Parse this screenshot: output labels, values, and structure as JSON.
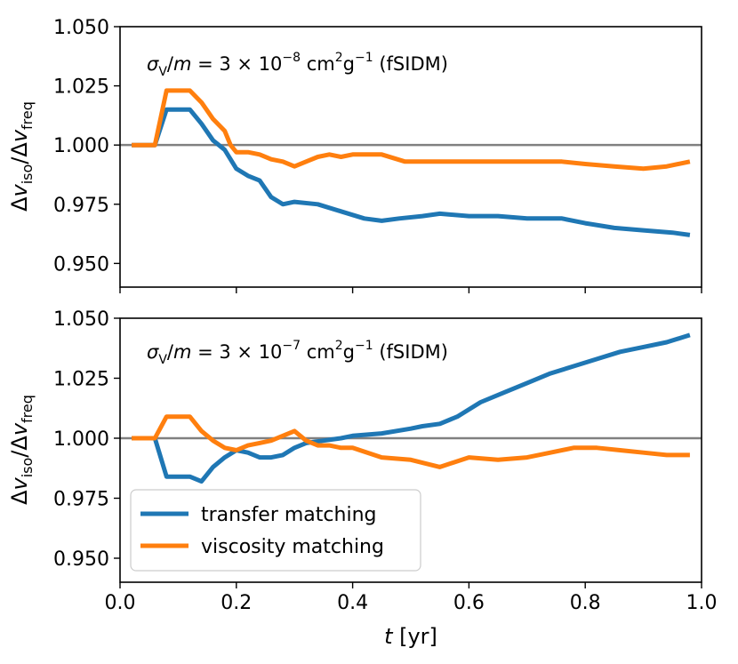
{
  "chart_data": {
    "type": "line",
    "xlabel": "t [yr]",
    "xlim": [
      0.0,
      1.0
    ],
    "xticks": [
      "0.0",
      "0.2",
      "0.4",
      "0.6",
      "0.8",
      "1.0"
    ],
    "reference_line": 1.0,
    "colors": {
      "transfer": "#1f77b4",
      "viscosity": "#ff7f0e",
      "reference": "#808080"
    },
    "legend": {
      "placement": "lower-left",
      "location": "bottom panel",
      "entries": [
        "transfer matching",
        "viscosity matching"
      ]
    },
    "panels": [
      {
        "id": "top",
        "annotation": "σV/m = 3 × 10−8 cm2g−1 (fSIDM)",
        "ylabel": "Δviso/Δvfreq",
        "ylim": [
          0.94,
          1.05
        ],
        "yticks": [
          "1.050",
          "1.025",
          "1.000",
          "0.975",
          "0.950"
        ],
        "series": [
          {
            "name": "transfer matching",
            "x": [
              0.02,
              0.06,
              0.08,
              0.1,
              0.12,
              0.14,
              0.16,
              0.18,
              0.2,
              0.22,
              0.24,
              0.26,
              0.28,
              0.3,
              0.34,
              0.38,
              0.42,
              0.45,
              0.48,
              0.52,
              0.55,
              0.6,
              0.65,
              0.7,
              0.76,
              0.8,
              0.85,
              0.9,
              0.95,
              0.98
            ],
            "values": [
              1.0,
              1.0,
              1.015,
              1.015,
              1.015,
              1.009,
              1.002,
              0.998,
              0.99,
              0.987,
              0.985,
              0.978,
              0.975,
              0.976,
              0.975,
              0.972,
              0.969,
              0.968,
              0.969,
              0.97,
              0.971,
              0.97,
              0.97,
              0.969,
              0.969,
              0.967,
              0.965,
              0.964,
              0.963,
              0.962
            ]
          },
          {
            "name": "viscosity matching",
            "x": [
              0.02,
              0.06,
              0.08,
              0.1,
              0.12,
              0.14,
              0.16,
              0.18,
              0.19,
              0.2,
              0.22,
              0.24,
              0.26,
              0.28,
              0.3,
              0.32,
              0.34,
              0.36,
              0.38,
              0.4,
              0.45,
              0.49,
              0.52,
              0.55,
              0.6,
              0.65,
              0.7,
              0.76,
              0.8,
              0.85,
              0.9,
              0.94,
              0.98
            ],
            "values": [
              1.0,
              1.0,
              1.023,
              1.023,
              1.023,
              1.018,
              1.011,
              1.006,
              1.0,
              0.997,
              0.997,
              0.996,
              0.994,
              0.993,
              0.991,
              0.993,
              0.995,
              0.996,
              0.995,
              0.996,
              0.996,
              0.993,
              0.993,
              0.993,
              0.993,
              0.993,
              0.993,
              0.993,
              0.992,
              0.991,
              0.99,
              0.991,
              0.993
            ]
          }
        ]
      },
      {
        "id": "bottom",
        "annotation": "σV/m = 3 × 10−7 cm2g−1 (fSIDM)",
        "ylabel": "Δviso/Δvfreq",
        "ylim": [
          0.94,
          1.05
        ],
        "yticks": [
          "1.050",
          "1.025",
          "1.000",
          "0.975",
          "0.950"
        ],
        "series": [
          {
            "name": "transfer matching",
            "x": [
              0.02,
              0.06,
              0.08,
              0.1,
              0.12,
              0.14,
              0.16,
              0.18,
              0.2,
              0.22,
              0.24,
              0.26,
              0.28,
              0.3,
              0.32,
              0.35,
              0.38,
              0.4,
              0.45,
              0.5,
              0.52,
              0.55,
              0.58,
              0.62,
              0.66,
              0.7,
              0.74,
              0.78,
              0.82,
              0.86,
              0.9,
              0.94,
              0.98
            ],
            "values": [
              1.0,
              1.0,
              0.984,
              0.984,
              0.984,
              0.982,
              0.988,
              0.992,
              0.995,
              0.994,
              0.992,
              0.992,
              0.993,
              0.996,
              0.998,
              0.999,
              1.0,
              1.001,
              1.002,
              1.004,
              1.005,
              1.006,
              1.009,
              1.015,
              1.019,
              1.023,
              1.027,
              1.03,
              1.033,
              1.036,
              1.038,
              1.04,
              1.043
            ]
          },
          {
            "name": "viscosity matching",
            "x": [
              0.02,
              0.06,
              0.08,
              0.1,
              0.12,
              0.14,
              0.16,
              0.18,
              0.2,
              0.22,
              0.24,
              0.26,
              0.28,
              0.3,
              0.32,
              0.34,
              0.36,
              0.38,
              0.4,
              0.45,
              0.5,
              0.55,
              0.6,
              0.65,
              0.7,
              0.74,
              0.78,
              0.82,
              0.86,
              0.9,
              0.94,
              0.98
            ],
            "values": [
              1.0,
              1.0,
              1.009,
              1.009,
              1.009,
              1.003,
              0.999,
              0.996,
              0.995,
              0.997,
              0.998,
              0.999,
              1.001,
              1.003,
              0.999,
              0.997,
              0.997,
              0.996,
              0.996,
              0.992,
              0.991,
              0.988,
              0.992,
              0.991,
              0.992,
              0.994,
              0.996,
              0.996,
              0.995,
              0.994,
              0.993,
              0.993
            ]
          }
        ]
      }
    ]
  }
}
